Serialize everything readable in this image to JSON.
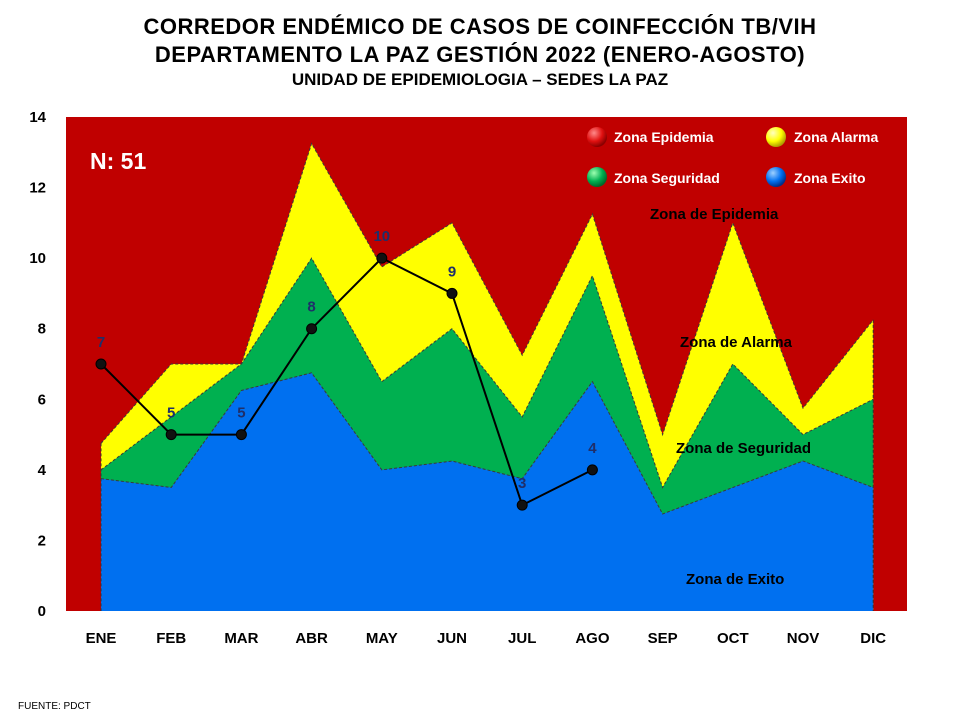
{
  "title_line1": "CORREDOR ENDÉMICO DE CASOS DE COINFECCIÓN TB/VIH",
  "title_line2": "DEPARTAMENTO  LA PAZ GESTIÓN 2022 (ENERO-AGOSTO)",
  "title_line3": "UNIDAD DE EPIDEMIOLOGIA – SEDES LA PAZ",
  "source": "FUENTE:   PDCT",
  "n_label": "N: 51",
  "colors": {
    "epidemia": "#c00000",
    "alarma": "#ffff00",
    "seguridad": "#00b050",
    "exito": "#0070f0",
    "line": "#000000",
    "point_label": "#1f2f6a"
  },
  "legend": [
    {
      "label": "Zona Epidemia",
      "icon": "red-ball-icon"
    },
    {
      "label": "Zona Alarma",
      "icon": "yellow-ball-icon"
    },
    {
      "label": "Zona Seguridad",
      "icon": "green-ball-icon"
    },
    {
      "label": "Zona Exito",
      "icon": "blue-ball-icon"
    }
  ],
  "zone_labels": {
    "epidemia": "Zona de Epidemia",
    "alarma": "Zona de Alarma",
    "seguridad": "Zona de Seguridad",
    "exito": "Zona de Exito"
  },
  "chart_data": {
    "type": "area",
    "categories": [
      "ENE",
      "FEB",
      "MAR",
      "ABR",
      "MAY",
      "JUN",
      "JUL",
      "AGO",
      "SEP",
      "OCT",
      "NOV",
      "DIC"
    ],
    "ylim": [
      0,
      14
    ],
    "yticks": [
      0,
      2,
      4,
      6,
      8,
      10,
      12,
      14
    ],
    "grid": false,
    "legend_position": "top-right",
    "series": [
      {
        "name": "Zona Exito",
        "values": [
          3.75,
          3.5,
          6.25,
          6.75,
          4,
          4.25,
          3.75,
          6.5,
          2.75,
          3.5,
          4.25,
          3.5
        ]
      },
      {
        "name": "Zona Seguridad",
        "values": [
          4,
          5.5,
          7,
          10,
          6.5,
          8,
          5.5,
          9.5,
          3.5,
          7,
          5,
          6
        ]
      },
      {
        "name": "Zona Alarma",
        "values": [
          4.75,
          7,
          7,
          13.25,
          9.75,
          11,
          7.25,
          11.25,
          5,
          11,
          5.75,
          8.25
        ]
      },
      {
        "name": "Zona Epidemia",
        "values": [
          14,
          14,
          14,
          14,
          14,
          14,
          14,
          14,
          14,
          14,
          14,
          14
        ]
      }
    ],
    "cases": {
      "categories": [
        "ENE",
        "FEB",
        "MAR",
        "ABR",
        "MAY",
        "JUN",
        "JUL",
        "AGO"
      ],
      "values": [
        7,
        5,
        5,
        8,
        10,
        9,
        3,
        4
      ]
    }
  }
}
